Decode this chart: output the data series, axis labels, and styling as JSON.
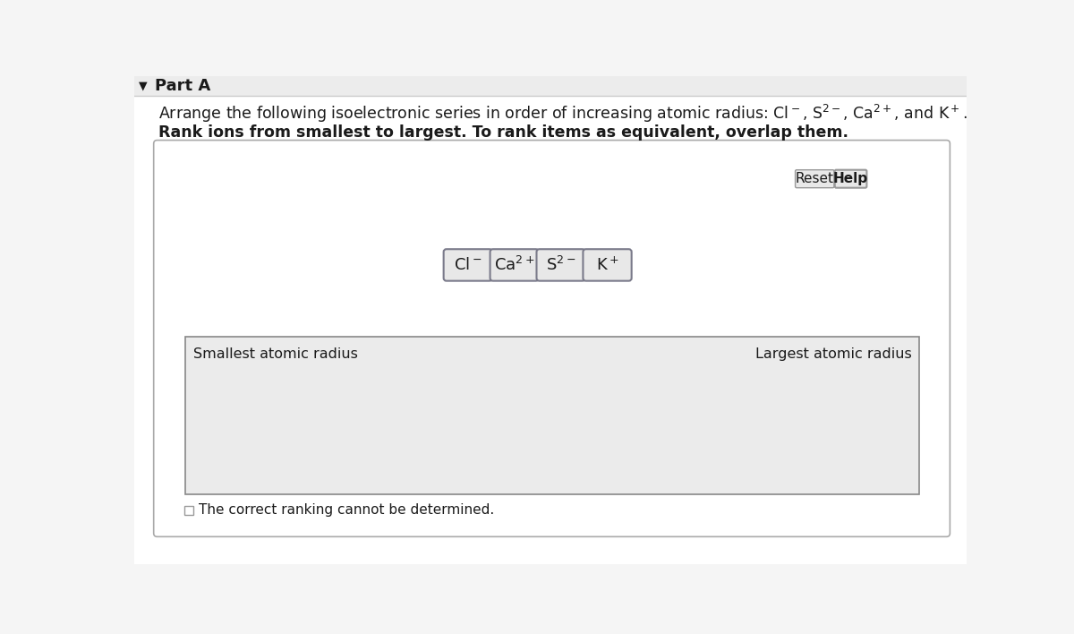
{
  "part_label": "Part A",
  "question_text": "Arrange the following isoelectronic series in order of increasing atomic radius: Cl$^-$, S$^{2-}$, Ca$^{2+}$, and K$^+$.",
  "instruction_text": "Rank ions from smallest to largest. To rank items as equivalent, overlap them.",
  "ions_display": [
    "Cl$^-$",
    "Ca$^{2+}$",
    "S$^{2-}$",
    "K$^+$"
  ],
  "reset_label": "Reset",
  "help_label": "Help",
  "smallest_label": "Smallest atomic radius",
  "largest_label": "Largest atomic radius",
  "checkbox_label": "The correct ranking cannot be determined.",
  "white": "#ffffff",
  "header_bg": "#ececec",
  "header_border": "#cccccc",
  "outer_bg": "#f5f5f5",
  "text_color": "#1a1a1a",
  "button_bg": "#e8e8e8",
  "button_border": "#999999",
  "ion_box_bg": "#e8e8e8",
  "ion_box_border": "#7a7a8a",
  "drop_zone_bg": "#ebebeb",
  "drop_zone_border": "#888888",
  "main_box_border": "#aaaaaa"
}
